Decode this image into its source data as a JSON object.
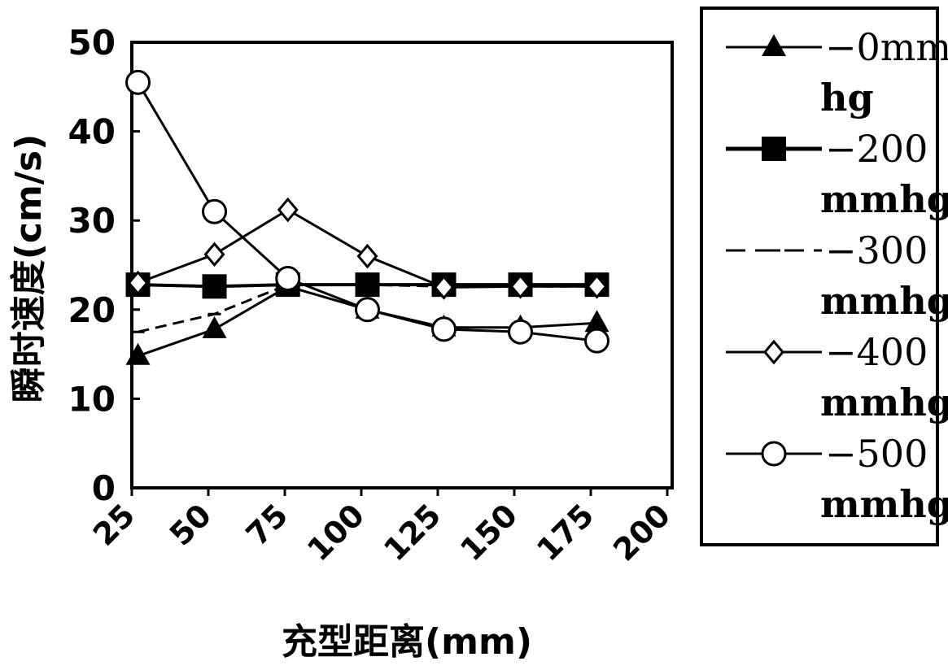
{
  "chart_data": {
    "type": "line",
    "title": "",
    "xlabel": "充型距离(mm)",
    "ylabel": "瞬时速度(cm/s)",
    "xlim": [
      25,
      200
    ],
    "ylim": [
      0,
      50
    ],
    "x_ticks": [
      "25",
      "50",
      "75",
      "100",
      "125",
      "150",
      "175",
      "200"
    ],
    "y_ticks": [
      "0",
      "10",
      "20",
      "30",
      "40",
      "50"
    ],
    "grid": false,
    "legend_position": "right-outside",
    "x": [
      27,
      52,
      76,
      102,
      127,
      152,
      177
    ],
    "series": [
      {
        "name_lines": [
          "−0mm",
          "hg"
        ],
        "marker": "triangle",
        "dashed": false,
        "values": [
          14.8,
          17.8,
          22.6,
          20.0,
          18.0,
          18.0,
          18.5
        ]
      },
      {
        "name_lines": [
          "−200",
          "mmhg"
        ],
        "marker": "square",
        "dashed": false,
        "values": [
          22.8,
          22.6,
          22.8,
          22.8,
          22.8,
          22.8,
          22.8
        ]
      },
      {
        "name_lines": [
          "−300",
          "mmhg"
        ],
        "marker": "dash",
        "dashed": true,
        "values": [
          17.5,
          19.5,
          22.8,
          22.8,
          22.6,
          22.6,
          22.6
        ]
      },
      {
        "name_lines": [
          "−400",
          "mmhg"
        ],
        "marker": "diamond",
        "dashed": false,
        "values": [
          23.0,
          26.2,
          31.2,
          26.0,
          22.5,
          22.6,
          22.6
        ]
      },
      {
        "name_lines": [
          "−500",
          "mmhg"
        ],
        "marker": "circle",
        "dashed": false,
        "values": [
          45.5,
          31.0,
          23.5,
          20.0,
          17.8,
          17.5,
          16.5
        ]
      }
    ]
  }
}
